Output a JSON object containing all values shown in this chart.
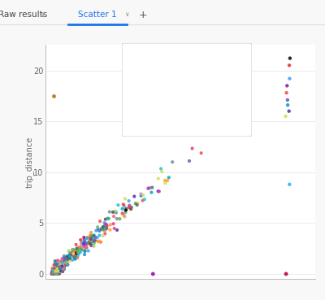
{
  "title_tab1": "Raw results",
  "title_tab2": "Scatter 1",
  "ylabel": "trip_distance",
  "yticks": [
    0,
    5,
    10,
    15,
    20
  ],
  "xlim": [
    -0.15,
    6.5
  ],
  "ylim": [
    -0.5,
    22.5
  ],
  "bg_color": "#f8f8f8",
  "plot_bg": "#ffffff",
  "grid_color": "#e8e8e8",
  "tab_active_color": "#1a73e8",
  "seed": 42,
  "fig_width": 4.0,
  "fig_height": 3.69,
  "dpi": 100
}
